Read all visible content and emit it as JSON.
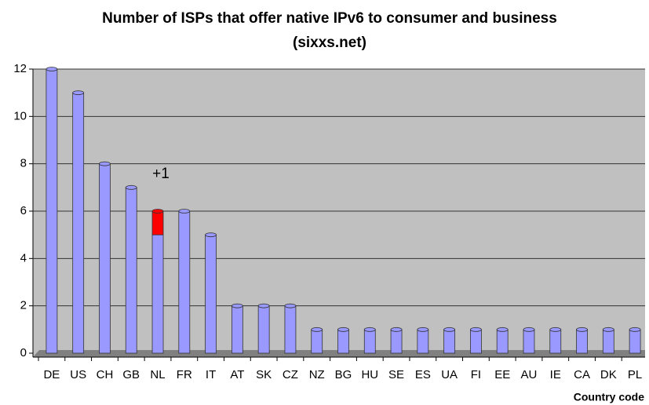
{
  "chart_data": {
    "type": "bar",
    "stacked": true,
    "title": "Number of ISPs that offer native IPv6 to consumer and business",
    "subtitle": "(sixxs.net)",
    "x_label": "Country code",
    "annotation": "+1",
    "categories": [
      "DE",
      "US",
      "CH",
      "GB",
      "NL",
      "FR",
      "IT",
      "AT",
      "SK",
      "CZ",
      "NZ",
      "BG",
      "HU",
      "SE",
      "ES",
      "UA",
      "FI",
      "EE",
      "AU",
      "IE",
      "CA",
      "DK",
      "PL"
    ],
    "series": [
      {
        "color": "#9999ff",
        "values": [
          12,
          11,
          8,
          7,
          5,
          6,
          5,
          2,
          2,
          2,
          1,
          1,
          1,
          1,
          1,
          1,
          1,
          1,
          1,
          1,
          1,
          1,
          1
        ]
      },
      {
        "color": "#ff0000",
        "values": [
          0,
          0,
          0,
          0,
          1,
          0,
          0,
          0,
          0,
          0,
          0,
          0,
          0,
          0,
          0,
          0,
          0,
          0,
          0,
          0,
          0,
          0,
          0
        ]
      }
    ],
    "ylim": [
      0,
      12
    ],
    "yticks": [
      0,
      2,
      4,
      6,
      8,
      10,
      12
    ],
    "grid": true
  }
}
